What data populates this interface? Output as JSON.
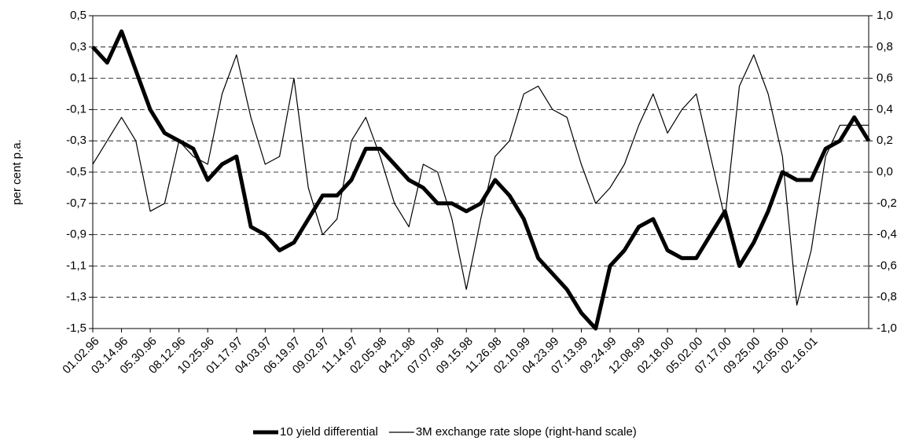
{
  "chart_data": {
    "type": "line",
    "ylabel": "per cent p.a.",
    "categories": [
      "01.02.96",
      null,
      "03.14.96",
      null,
      "05.30.96",
      null,
      "08.12.96",
      null,
      "10.25.96",
      null,
      "01.17.97",
      null,
      "04.03.97",
      null,
      "06.19.97",
      null,
      "09.02.97",
      null,
      "11.14.97",
      null,
      "02.05.98",
      null,
      "04.21.98",
      null,
      "07.07.98",
      null,
      "09.15.98",
      null,
      "11.26.98",
      null,
      "02.10.99",
      null,
      "04.23.99",
      null,
      "07.13.99",
      null,
      "09.24.99",
      null,
      "12.08.99",
      null,
      "02.18.00",
      null,
      "05.02.00",
      null,
      "07.17.00",
      null,
      "09.25.00",
      null,
      "12.05.00",
      null,
      "02.16.01",
      null,
      null,
      null,
      null
    ],
    "series": [
      {
        "name": "10 yield differential",
        "color": "#000000",
        "line_width": 5,
        "axis": "y",
        "values": [
          0.3,
          0.2,
          0.4,
          0.15,
          -0.1,
          -0.25,
          -0.3,
          -0.35,
          -0.55,
          -0.45,
          -0.4,
          -0.85,
          -0.9,
          -1.0,
          -0.95,
          -0.8,
          -0.65,
          -0.65,
          -0.55,
          -0.35,
          -0.35,
          -0.45,
          -0.55,
          -0.6,
          -0.7,
          -0.7,
          -0.75,
          -0.7,
          -0.55,
          -0.65,
          -0.8,
          -1.05,
          -1.15,
          -1.25,
          -1.4,
          -1.5,
          -1.1,
          -1.0,
          -0.85,
          -0.8,
          -1.0,
          -1.05,
          -1.05,
          -0.9,
          -0.75,
          -1.1,
          -0.95,
          -0.75,
          -0.5,
          -0.55,
          -0.55,
          -0.35,
          -0.3,
          -0.15,
          -0.3
        ]
      },
      {
        "name": "3M exchange rate slope (right-hand scale)",
        "color": "#000000",
        "line_width": 1.2,
        "axis": "y2",
        "values": [
          0.05,
          0.2,
          0.35,
          0.2,
          -0.25,
          -0.2,
          0.2,
          0.1,
          0.05,
          0.5,
          0.75,
          0.35,
          0.05,
          0.1,
          0.6,
          -0.1,
          -0.4,
          -0.3,
          0.2,
          0.35,
          0.1,
          -0.2,
          -0.35,
          0.05,
          0.0,
          -0.3,
          -0.75,
          -0.3,
          0.1,
          0.2,
          0.5,
          0.55,
          0.4,
          0.35,
          0.05,
          -0.2,
          -0.1,
          0.05,
          0.3,
          0.5,
          0.25,
          0.4,
          0.5,
          0.1,
          -0.3,
          0.55,
          0.75,
          0.5,
          0.1,
          -0.85,
          -0.5,
          0.1,
          0.3,
          0.3,
          0.3
        ]
      }
    ],
    "ylim": [
      -1.5,
      0.5
    ],
    "yticks": [
      {
        "value": 0.5,
        "label": "0,5"
      },
      {
        "value": 0.3,
        "label": "0,3"
      },
      {
        "value": 0.1,
        "label": "0,1"
      },
      {
        "value": -0.1,
        "label": "-0,1"
      },
      {
        "value": -0.3,
        "label": "-0,3"
      },
      {
        "value": -0.5,
        "label": "-0,5"
      },
      {
        "value": -0.7,
        "label": "-0,7"
      },
      {
        "value": -0.9,
        "label": "-0,9"
      },
      {
        "value": -1.1,
        "label": "-1,1"
      },
      {
        "value": -1.3,
        "label": "-1,3"
      },
      {
        "value": -1.5,
        "label": "-1,5"
      }
    ],
    "y2lim": [
      -1.0,
      1.0
    ],
    "y2ticks": [
      {
        "value": 1.0,
        "label": "1,0"
      },
      {
        "value": 0.8,
        "label": "0,8"
      },
      {
        "value": 0.6,
        "label": "0,6"
      },
      {
        "value": 0.4,
        "label": "0,4"
      },
      {
        "value": 0.2,
        "label": "0,2"
      },
      {
        "value": 0.0,
        "label": "0,0"
      },
      {
        "value": -0.2,
        "label": "-0,2"
      },
      {
        "value": -0.4,
        "label": "-0,4"
      },
      {
        "value": -0.6,
        "label": "-0,6"
      },
      {
        "value": -0.8,
        "label": "-0,8"
      },
      {
        "value": -1.0,
        "label": "-1,0"
      }
    ],
    "grid": true,
    "legend": "bottom"
  }
}
